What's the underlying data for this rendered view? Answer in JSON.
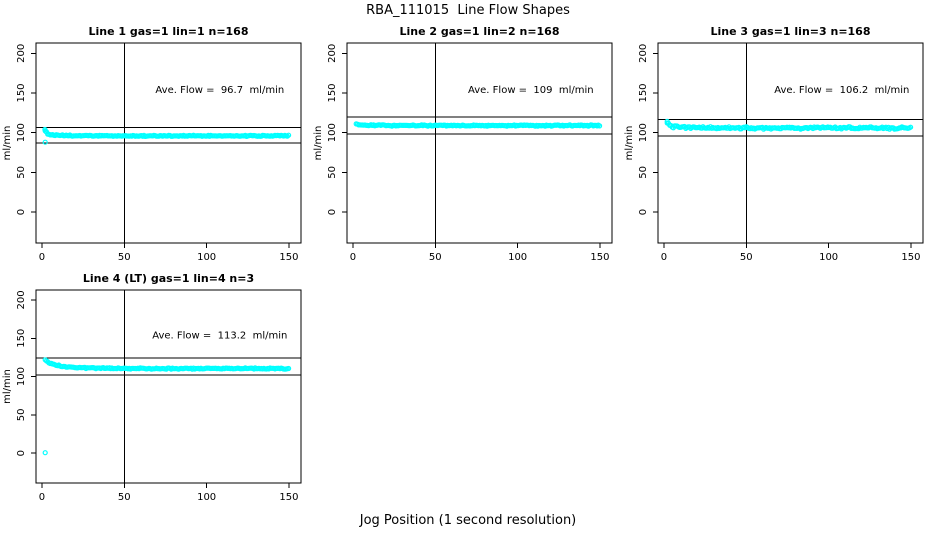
{
  "colors": {
    "points": "#00ffff",
    "axis": "#000000",
    "text": "#000000",
    "background": "#ffffff"
  },
  "chart_data": {
    "type": "scatter",
    "title": "RBA_111015  Line Flow Shapes",
    "xlabel": "Jog Position (1 second resolution)",
    "ylabel": "ml/min",
    "x_ticks": [
      0,
      50,
      100,
      150
    ],
    "y_ticks": [
      0,
      50,
      100,
      150,
      200
    ],
    "x_range": [
      -3.6,
      157.3
    ],
    "y_range": [
      -39,
      213
    ],
    "vline_x": 50,
    "marker": "open-circle",
    "legend": "none",
    "grid": false,
    "panels": [
      {
        "title": "Line 1 gas=1 lin=1 n=168",
        "n": 168,
        "ave_flow": 96.7,
        "ave_flow_label": "Ave. Flow =  96.7  ml/min",
        "hlines": [
          106.4,
          87.0
        ],
        "x_start": 2,
        "x_end": 150,
        "jitter": 0.9,
        "anchors": [
          [
            2,
            102.5
          ],
          [
            3,
            99.5
          ],
          [
            4,
            98.3
          ],
          [
            5,
            97.6
          ],
          [
            7,
            97.0
          ],
          [
            10,
            96.6
          ],
          [
            20,
            96.2
          ],
          [
            40,
            96.0
          ],
          [
            80,
            96.0
          ],
          [
            120,
            96.0
          ],
          [
            150,
            96.3
          ]
        ],
        "outliers": [
          [
            2,
            88.0
          ],
          [
            2.5,
            101.5
          ],
          [
            1.8,
            104.0
          ]
        ]
      },
      {
        "title": "Line 2 gas=1 lin=2 n=168",
        "n": 168,
        "ave_flow": 109,
        "ave_flow_label": "Ave. Flow =  109  ml/min",
        "hlines": [
          119.9,
          98.1
        ],
        "x_start": 2,
        "x_end": 150,
        "jitter": 0.9,
        "anchors": [
          [
            2,
            110.8
          ],
          [
            3,
            110.2
          ],
          [
            5,
            109.6
          ],
          [
            10,
            109.2
          ],
          [
            30,
            109.0
          ],
          [
            80,
            109.0
          ],
          [
            150,
            109.1
          ]
        ],
        "outliers": []
      },
      {
        "title": "Line 3 gas=1 lin=3 n=168",
        "n": 168,
        "ave_flow": 106.2,
        "ave_flow_label": "Ave. Flow =  106.2  ml/min",
        "hlines": [
          116.8,
          95.6
        ],
        "x_start": 2,
        "x_end": 150,
        "jitter": 1.7,
        "anchors": [
          [
            2,
            112.5
          ],
          [
            3,
            110.5
          ],
          [
            4,
            108.8
          ],
          [
            6,
            107.5
          ],
          [
            10,
            106.8
          ],
          [
            20,
            106.3
          ],
          [
            60,
            106.0
          ],
          [
            100,
            106.2
          ],
          [
            150,
            106.0
          ]
        ],
        "outliers": [
          [
            2,
            114.3
          ]
        ]
      },
      {
        "title": "Line 4 (LT) gas=1 lin=4 n=3",
        "n": 3,
        "ave_flow": 113.2,
        "ave_flow_label": "Ave. Flow =  113.2  ml/min",
        "hlines": [
          124.5,
          101.9
        ],
        "x_start": 2,
        "x_end": 150,
        "jitter": 1.0,
        "anchors": [
          [
            2,
            121.5
          ],
          [
            3,
            120.2
          ],
          [
            4,
            118.9
          ],
          [
            6,
            116.9
          ],
          [
            8,
            115.4
          ],
          [
            10,
            114.4
          ],
          [
            13,
            113.3
          ],
          [
            16,
            112.5
          ],
          [
            20,
            111.9
          ],
          [
            25,
            111.4
          ],
          [
            30,
            111.1
          ],
          [
            40,
            110.8
          ],
          [
            60,
            110.5
          ],
          [
            100,
            110.4
          ],
          [
            150,
            110.4
          ]
        ],
        "outliers": [
          [
            2,
            0.5
          ]
        ]
      }
    ]
  }
}
